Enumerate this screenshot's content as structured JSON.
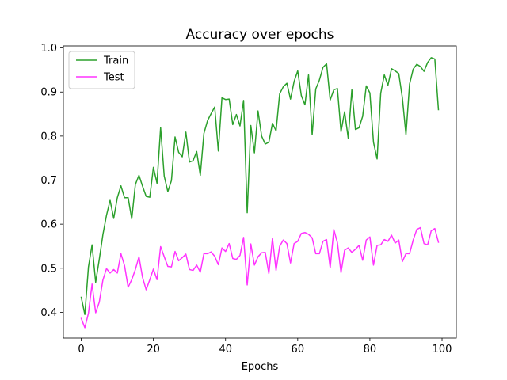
{
  "chart_data": {
    "type": "line",
    "title": "Accuracy over epochs",
    "xlabel": "Epochs",
    "ylabel": "",
    "xlim": [
      -4.95,
      103.95
    ],
    "ylim": [
      0.3414,
      1.0047
    ],
    "xticks": [
      0,
      20,
      40,
      60,
      80,
      100
    ],
    "yticks": [
      0.4,
      0.5,
      0.6,
      0.7,
      0.8,
      0.9,
      1.0
    ],
    "xtick_labels": [
      "0",
      "20",
      "40",
      "60",
      "80",
      "100"
    ],
    "ytick_labels": [
      "0.4",
      "0.5",
      "0.6",
      "0.7",
      "0.8",
      "0.9",
      "1.0"
    ],
    "grid": false,
    "legend_position": "upper-left",
    "x": [
      0,
      1,
      2,
      3,
      4,
      5,
      6,
      7,
      8,
      9,
      10,
      11,
      12,
      13,
      14,
      15,
      16,
      17,
      18,
      19,
      20,
      21,
      22,
      23,
      24,
      25,
      26,
      27,
      28,
      29,
      30,
      31,
      32,
      33,
      34,
      35,
      36,
      37,
      38,
      39,
      40,
      41,
      42,
      43,
      44,
      45,
      46,
      47,
      48,
      49,
      50,
      51,
      52,
      53,
      54,
      55,
      56,
      57,
      58,
      59,
      60,
      61,
      62,
      63,
      64,
      65,
      66,
      67,
      68,
      69,
      70,
      71,
      72,
      73,
      74,
      75,
      76,
      77,
      78,
      79,
      80,
      81,
      82,
      83,
      84,
      85,
      86,
      87,
      88,
      89,
      90,
      91,
      92,
      93,
      94,
      95,
      96,
      97,
      98,
      99
    ],
    "series": [
      {
        "name": "Train",
        "color": "#2ca02c",
        "values": [
          0.434,
          0.395,
          0.503,
          0.553,
          0.468,
          0.52,
          0.576,
          0.62,
          0.654,
          0.613,
          0.66,
          0.687,
          0.66,
          0.66,
          0.612,
          0.69,
          0.711,
          0.686,
          0.663,
          0.661,
          0.729,
          0.693,
          0.819,
          0.709,
          0.674,
          0.699,
          0.798,
          0.763,
          0.753,
          0.809,
          0.741,
          0.744,
          0.765,
          0.711,
          0.806,
          0.835,
          0.851,
          0.866,
          0.766,
          0.887,
          0.883,
          0.884,
          0.826,
          0.849,
          0.823,
          0.881,
          0.626,
          0.824,
          0.762,
          0.857,
          0.8,
          0.782,
          0.786,
          0.829,
          0.812,
          0.896,
          0.912,
          0.92,
          0.884,
          0.924,
          0.948,
          0.892,
          0.871,
          0.939,
          0.803,
          0.907,
          0.927,
          0.956,
          0.964,
          0.882,
          0.905,
          0.908,
          0.81,
          0.855,
          0.795,
          0.905,
          0.815,
          0.819,
          0.845,
          0.914,
          0.898,
          0.786,
          0.748,
          0.897,
          0.939,
          0.915,
          0.953,
          0.948,
          0.942,
          0.887,
          0.803,
          0.918,
          0.952,
          0.963,
          0.958,
          0.947,
          0.967,
          0.978,
          0.975,
          0.86
        ]
      },
      {
        "name": "Test",
        "color": "#ff33ff",
        "values": [
          0.386,
          0.365,
          0.398,
          0.464,
          0.399,
          0.423,
          0.473,
          0.499,
          0.489,
          0.497,
          0.489,
          0.533,
          0.506,
          0.457,
          0.474,
          0.497,
          0.526,
          0.479,
          0.451,
          0.474,
          0.498,
          0.474,
          0.549,
          0.526,
          0.504,
          0.503,
          0.538,
          0.517,
          0.524,
          0.532,
          0.497,
          0.495,
          0.507,
          0.491,
          0.533,
          0.533,
          0.537,
          0.527,
          0.508,
          0.546,
          0.538,
          0.556,
          0.522,
          0.52,
          0.529,
          0.57,
          0.462,
          0.555,
          0.507,
          0.526,
          0.535,
          0.536,
          0.488,
          0.568,
          0.495,
          0.55,
          0.564,
          0.556,
          0.512,
          0.556,
          0.561,
          0.579,
          0.581,
          0.577,
          0.569,
          0.533,
          0.533,
          0.561,
          0.565,
          0.501,
          0.588,
          0.558,
          0.49,
          0.541,
          0.546,
          0.536,
          0.543,
          0.552,
          0.518,
          0.564,
          0.571,
          0.507,
          0.552,
          0.553,
          0.565,
          0.561,
          0.575,
          0.557,
          0.564,
          0.515,
          0.533,
          0.533,
          0.564,
          0.588,
          0.592,
          0.556,
          0.553,
          0.585,
          0.59,
          0.559
        ]
      }
    ]
  }
}
